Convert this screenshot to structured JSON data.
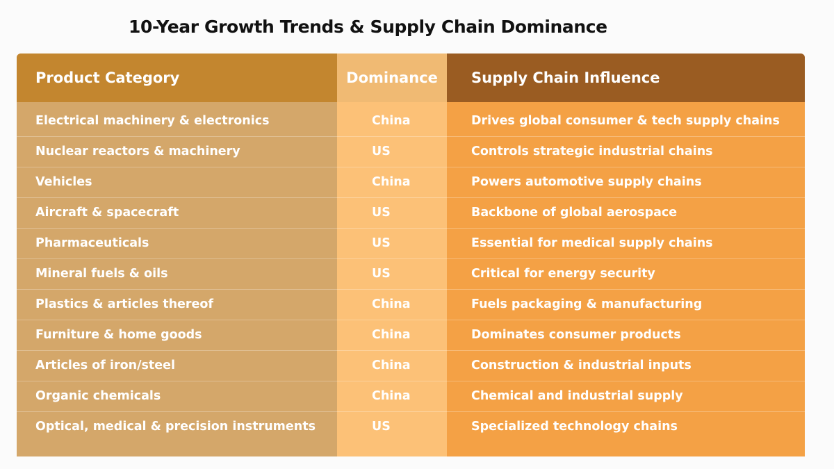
{
  "title": "10-Year Growth Trends & Supply Chain Dominance",
  "colors": {
    "category_column": "#d4a76a",
    "dominance_column": "#fcc177",
    "influence_column": "#f4a145",
    "category_header": "#c3862f",
    "dominance_header": "#f0ba73",
    "influence_header": "#9a5c22"
  },
  "headers": {
    "category": "Product Category",
    "dominance": "Dominance",
    "influence": "Supply Chain Influence"
  },
  "rows": [
    {
      "category": "Electrical machinery & electronics",
      "dominance": "China",
      "influence": "Drives global consumer & tech supply chains"
    },
    {
      "category": "Nuclear reactors & machinery",
      "dominance": "US",
      "influence": "Controls strategic industrial chains"
    },
    {
      "category": "Vehicles",
      "dominance": "China",
      "influence": "Powers automotive supply chains"
    },
    {
      "category": "Aircraft & spacecraft",
      "dominance": "US",
      "influence": "Backbone of global aerospace"
    },
    {
      "category": "Pharmaceuticals",
      "dominance": "US",
      "influence": "Essential for medical supply chains"
    },
    {
      "category": "Mineral fuels & oils",
      "dominance": "US",
      "influence": "Critical for energy security"
    },
    {
      "category": "Plastics & articles thereof",
      "dominance": "China",
      "influence": "Fuels packaging & manufacturing"
    },
    {
      "category": "Furniture & home goods",
      "dominance": "China",
      "influence": "Dominates consumer products"
    },
    {
      "category": "Articles of iron/steel",
      "dominance": "China",
      "influence": "Construction & industrial inputs"
    },
    {
      "category": "Organic chemicals",
      "dominance": "China",
      "influence": "Chemical and industrial supply"
    },
    {
      "category": "Optical, medical & precision instruments",
      "dominance": "US",
      "influence": "Specialized technology chains"
    }
  ]
}
